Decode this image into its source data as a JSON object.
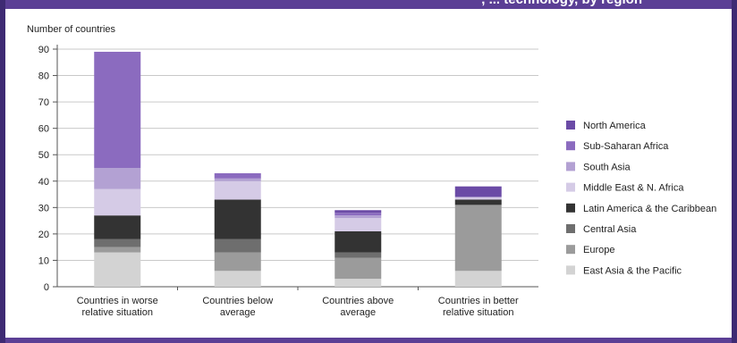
{
  "header": {
    "title_fragment": ", ... technology, by region"
  },
  "colors": {
    "North America": "#6b4ba6",
    "Sub-Saharan Africa": "#8b6bbf",
    "South Asia": "#b3a1d3",
    "Middle East & N. Africa": "#d5cbe6",
    "Latin America & the Caribbean": "#333333",
    "Central Asia": "#6e6e6e",
    "Europe": "#9b9b9b",
    "East Asia & the Pacific": "#d3d3d3"
  },
  "chart_data": {
    "type": "bar",
    "stacked": true,
    "title": "",
    "ylabel": "Number of countries",
    "xlabel": "",
    "ylim": [
      0,
      90
    ],
    "yticks": [
      0,
      10,
      20,
      30,
      40,
      50,
      60,
      70,
      80,
      90
    ],
    "grid": true,
    "legend_position": "right",
    "categories": [
      [
        "Countries in worse",
        "relative situation"
      ],
      [
        "Countries below",
        "average"
      ],
      [
        "Countries above",
        "average"
      ],
      [
        "Countries in better",
        "relative situation"
      ]
    ],
    "series": [
      {
        "name": "East Asia & the Pacific",
        "values": [
          13,
          6,
          3,
          6
        ]
      },
      {
        "name": "Europe",
        "values": [
          2,
          7,
          8,
          25
        ]
      },
      {
        "name": "Central Asia",
        "values": [
          3,
          5,
          2,
          0
        ]
      },
      {
        "name": "Latin America & the Caribbean",
        "values": [
          9,
          15,
          8,
          2
        ]
      },
      {
        "name": "Middle East & N. Africa",
        "values": [
          10,
          7,
          5,
          1
        ]
      },
      {
        "name": "South Asia",
        "values": [
          8,
          1,
          1,
          0
        ]
      },
      {
        "name": "Sub-Saharan Africa",
        "values": [
          44,
          2,
          1,
          0
        ]
      },
      {
        "name": "North America",
        "values": [
          0,
          0,
          1,
          4
        ]
      }
    ],
    "legend_order": [
      "North America",
      "Sub-Saharan Africa",
      "South Asia",
      "Middle East & N. Africa",
      "Latin America & the Caribbean",
      "Central Asia",
      "Europe",
      "East Asia & the Pacific"
    ]
  }
}
